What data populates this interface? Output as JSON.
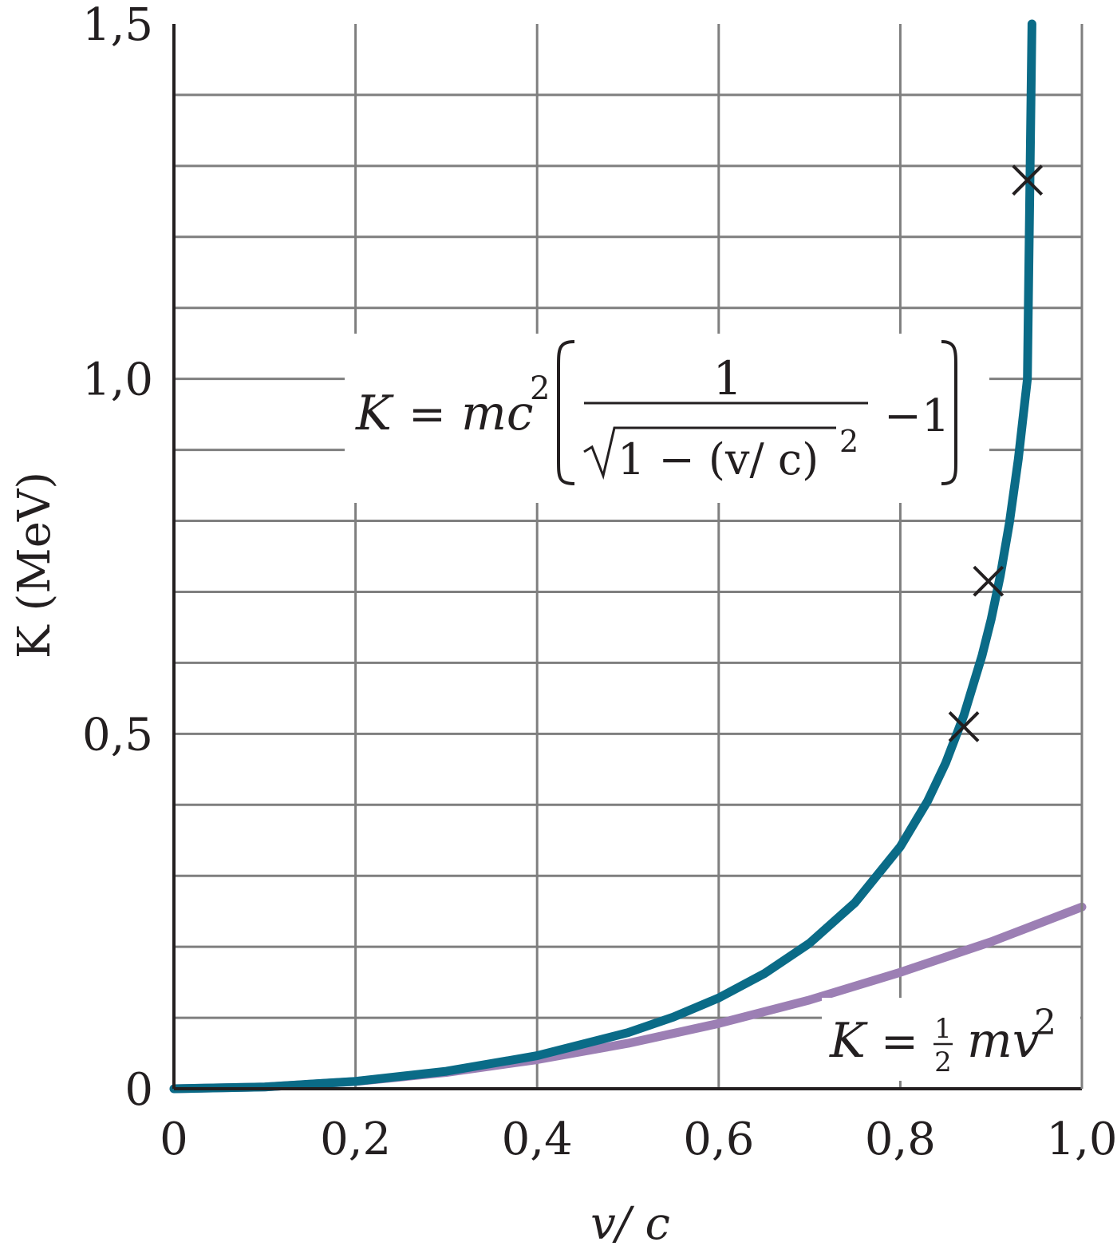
{
  "chart_data": {
    "type": "line",
    "title": "",
    "xlabel": "v/ c",
    "ylabel": "K (MeV)",
    "xlim": [
      0,
      1.0
    ],
    "ylim": [
      0,
      1.5
    ],
    "x_ticks": [
      "0",
      "0,2",
      "0,4",
      "0,6",
      "0,8",
      "1,0"
    ],
    "y_ticks": [
      "0",
      "0,5",
      "1,0",
      "1,5"
    ],
    "grid": true,
    "series": [
      {
        "name": "K = mc²(1/√(1 − (v/c)²) − 1)",
        "color": "#0a6b87",
        "x": [
          0,
          0.1,
          0.2,
          0.3,
          0.4,
          0.5,
          0.55,
          0.6,
          0.65,
          0.7,
          0.75,
          0.8,
          0.83,
          0.85,
          0.87,
          0.89,
          0.9,
          0.91,
          0.92,
          0.93,
          0.94,
          0.945
        ],
        "y": [
          0,
          0.0026,
          0.0105,
          0.0246,
          0.0465,
          0.079,
          0.101,
          0.128,
          0.162,
          0.205,
          0.262,
          0.341,
          0.405,
          0.459,
          0.526,
          0.61,
          0.661,
          0.722,
          0.796,
          0.887,
          1.0,
          1.5
        ]
      },
      {
        "name": "K = ½ mv²",
        "color": "#9c7fb4",
        "x": [
          0,
          0.1,
          0.2,
          0.3,
          0.4,
          0.5,
          0.6,
          0.7,
          0.8,
          0.9,
          1.0
        ],
        "y": [
          0,
          0.0026,
          0.0102,
          0.023,
          0.041,
          0.064,
          0.092,
          0.125,
          0.164,
          0.207,
          0.256
        ]
      }
    ],
    "markers": [
      {
        "symbol": "×",
        "x": 0.87,
        "y": 0.51
      },
      {
        "symbol": "×",
        "x": 0.897,
        "y": 0.715
      },
      {
        "symbol": "×",
        "x": 0.94,
        "y": 1.28
      }
    ]
  },
  "formula_relativistic": {
    "K": "K",
    "eq": "=",
    "mc": "mc",
    "sup2": "2",
    "numerator": "1",
    "root_content": "1 − (v/ c)",
    "root_sup": "2",
    "minus_one": "−1"
  },
  "formula_classical": {
    "K": "K",
    "eq": "=",
    "half_num": "1",
    "half_den": "2",
    "mv": "mv",
    "sup2": "2"
  }
}
